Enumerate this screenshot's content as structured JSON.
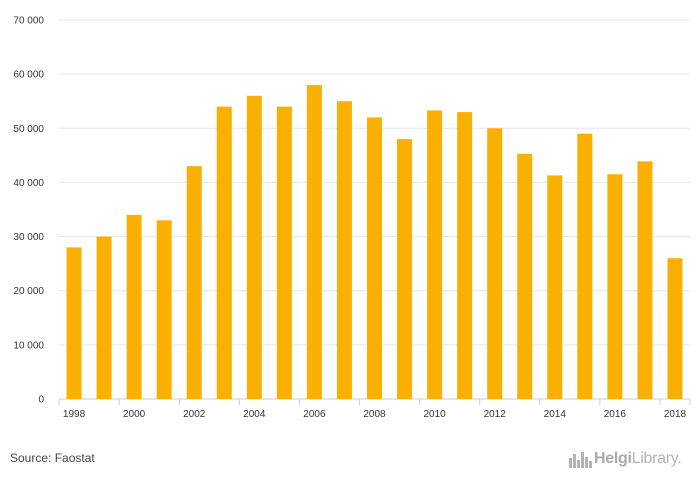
{
  "chart_data": {
    "type": "bar",
    "categories": [
      "1998",
      "1999",
      "2000",
      "2001",
      "2002",
      "2003",
      "2004",
      "2005",
      "2006",
      "2007",
      "2008",
      "2009",
      "2010",
      "2011",
      "2012",
      "2013",
      "2014",
      "2015",
      "2016",
      "2017",
      "2018"
    ],
    "x_tick_labels": [
      "1998",
      "2000",
      "2002",
      "2004",
      "2006",
      "2008",
      "2010",
      "2012",
      "2014",
      "2016",
      "2018"
    ],
    "values": [
      28000,
      30000,
      34000,
      33000,
      43000,
      54000,
      56000,
      54000,
      58000,
      55000,
      52000,
      48000,
      53300,
      53000,
      50000,
      45300,
      41300,
      49000,
      41500,
      43900,
      26000
    ],
    "ylim": [
      0,
      70000
    ],
    "y_ticks": [
      0,
      10000,
      20000,
      30000,
      40000,
      50000,
      60000,
      70000
    ],
    "y_tick_labels": [
      "0",
      "10 000",
      "20 000",
      "30 000",
      "40 000",
      "50 000",
      "60 000",
      "70 000"
    ],
    "title": "",
    "xlabel": "",
    "ylabel": "",
    "grid": true,
    "bar_color": "#f9b000",
    "grid_color": "#e6e6e6"
  },
  "footer": {
    "source": "Source: Faostat",
    "logo_bold": "Helgi",
    "logo_regular": "Library."
  }
}
